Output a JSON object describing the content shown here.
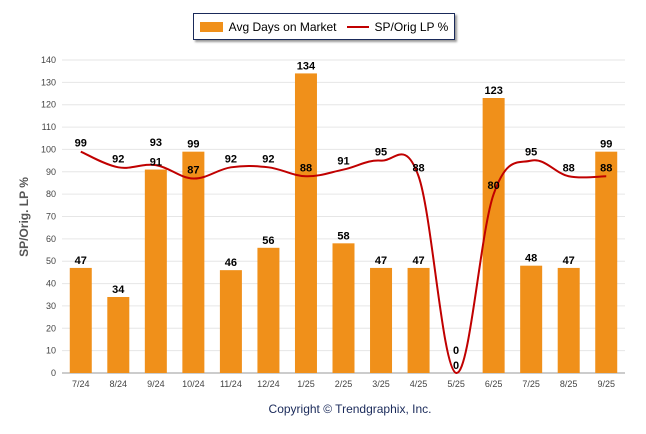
{
  "chart_data": {
    "type": "bar+line",
    "categories": [
      "7/24",
      "8/24",
      "9/24",
      "10/24",
      "11/24",
      "12/24",
      "1/25",
      "2/25",
      "3/25",
      "4/25",
      "5/25",
      "6/25",
      "7/25",
      "8/25",
      "9/25"
    ],
    "series": [
      {
        "name": "Avg Days on Market",
        "type": "bar",
        "color": "#f0901a",
        "values": [
          47,
          34,
          91,
          99,
          46,
          56,
          134,
          58,
          47,
          47,
          0,
          123,
          48,
          47,
          99
        ]
      },
      {
        "name": "SP/Orig LP %",
        "type": "line",
        "color": "#c00000",
        "values": [
          99,
          92,
          93,
          87,
          92,
          92,
          88,
          91,
          95,
          88,
          0,
          80,
          95,
          88,
          88
        ]
      }
    ],
    "ylabel": "SP/Orig. LP %",
    "ylim": [
      0,
      140
    ],
    "yticks": [
      0,
      10,
      20,
      30,
      40,
      50,
      60,
      70,
      80,
      90,
      100,
      110,
      120,
      130,
      140
    ],
    "grid": true,
    "legend_position": "top-center"
  },
  "footer": {
    "copyright": "Copyright © Trendgraphix, Inc."
  }
}
